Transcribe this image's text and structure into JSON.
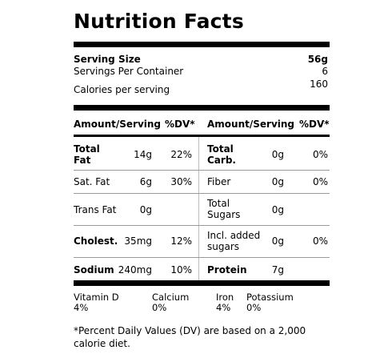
{
  "title": "Nutrition Facts",
  "serving": {
    "size_label": "Serving Size",
    "size_value": "56g",
    "per_container_label": "Servings Per Container",
    "per_container_value": "6",
    "calories_label": "Calories per serving",
    "calories_value": "160"
  },
  "headers": {
    "left_amount": "Amount/Serving",
    "left_dv": "%DV*",
    "right_amount": "Amount/Serving",
    "right_dv": "%DV*"
  },
  "rows": [
    {
      "l_name_1": "Total",
      "l_name_2": "Fat",
      "l_amt": "14g",
      "l_dv": "22%",
      "r_name_1": "Total",
      "r_name_2": "Carb.",
      "r_amt": "0g",
      "r_dv": "0%"
    },
    {
      "l_name": "Sat. Fat",
      "l_amt": "6g",
      "l_dv": "30%",
      "r_name": "Fiber",
      "r_amt": "0g",
      "r_dv": "0%"
    },
    {
      "l_name": "Trans Fat",
      "l_amt": "0g",
      "r_name_1": "Total",
      "r_name_2": "Sugars",
      "r_amt": "0g"
    },
    {
      "l_name": "Cholest.",
      "l_amt": "35mg",
      "l_dv": "12%",
      "r_name_1": "Incl. added",
      "r_name_2": "sugars",
      "r_amt": "0g",
      "r_dv": "0%"
    },
    {
      "l_name": "Sodium",
      "l_amt": "240mg",
      "l_dv": "10%",
      "r_name": "Protein",
      "r_amt": "7g"
    }
  ],
  "vitamins": [
    {
      "name": "Vitamin D",
      "value": "4%"
    },
    {
      "name": "Calcium",
      "value": "0%"
    },
    {
      "name": "Iron",
      "value": "4%"
    },
    {
      "name": "Potassium",
      "value": "0%"
    }
  ],
  "footnote": {
    "line1": "*Percent Daily Values (DV) are based on a 2,000",
    "line2": "calorie diet."
  }
}
